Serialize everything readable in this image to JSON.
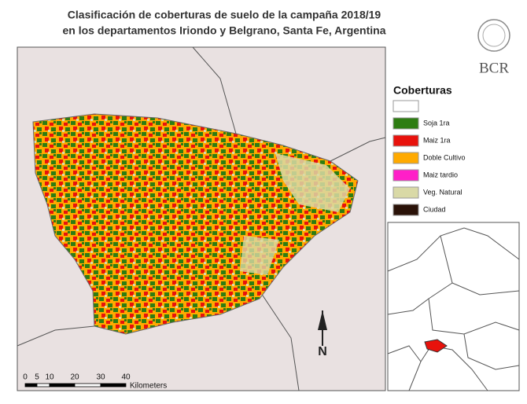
{
  "header": {
    "title_lines": [
      "Clasificación de coberturas de suelo de la campaña 2018/19",
      "en los departamentos Iriondo y Belgrano, Santa Fe,  Argentina"
    ],
    "logo_text": "BCR"
  },
  "legend": {
    "title": "Coberturas",
    "items": [
      {
        "color": "#ffffff"
      },
      {
        "label": "Soja 1ra",
        "color": "#2e7d12"
      },
      {
        "label": "Maiz 1ra",
        "color": "#e8120c"
      },
      {
        "label": "Doble Cultivo",
        "color": "#ffaa00"
      },
      {
        "label": "Maiz tardio",
        "color": "#ff1fc8"
      },
      {
        "label": "Veg. Natural",
        "color": "#d9d9a6"
      },
      {
        "label": "Ciudad",
        "color": "#2a1208"
      }
    ]
  },
  "scale_bar": {
    "ticks": [
      "0",
      "5",
      "10",
      "20",
      "30",
      "40"
    ],
    "unit": "Kilometers"
  },
  "north_arrow": {
    "label": "N"
  }
}
